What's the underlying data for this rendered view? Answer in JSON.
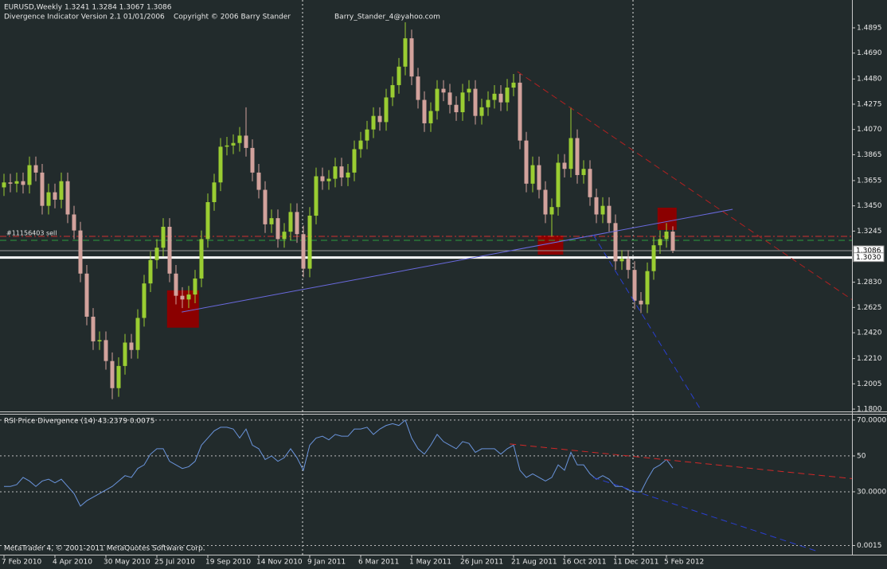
{
  "header": {
    "symbol_line": "EURUSD,Weekly  1.3241 1.3284 1.3067 1.3086",
    "indicator_line": "Divergence Indicator Version 2.1  01/01/2006",
    "copyright": "Copyright © 2006 Barry Stander",
    "email": "Barry_Stander_4@yahoo.com"
  },
  "footer": "MetaTrader 4, © 2001-2011 MetaQuotes Software Corp.",
  "chart_data": [
    {
      "type": "candlestick",
      "up_color": "#9acd32",
      "down_color": "#d2a29c",
      "categories": [
        "7 Feb 2010",
        null,
        null,
        null,
        null,
        null,
        null,
        null,
        "4 Apr 2010",
        null,
        null,
        null,
        null,
        null,
        null,
        null,
        "30 May 2010",
        null,
        null,
        null,
        null,
        null,
        null,
        null,
        "25 Jul 2010",
        null,
        null,
        null,
        null,
        null,
        null,
        null,
        "19 Sep 2010",
        null,
        null,
        null,
        null,
        null,
        null,
        null,
        "14 Nov 2010",
        null,
        null,
        null,
        null,
        null,
        null,
        null,
        "9 Jan 2011",
        null,
        null,
        null,
        null,
        null,
        null,
        null,
        "6 Mar 2011",
        null,
        null,
        null,
        null,
        null,
        null,
        null,
        "1 May 2011",
        null,
        null,
        null,
        null,
        null,
        null,
        null,
        "26 Jun 2011",
        null,
        null,
        null,
        null,
        null,
        null,
        null,
        "21 Aug 2011",
        null,
        null,
        null,
        null,
        null,
        null,
        null,
        "16 Oct 2011",
        null,
        null,
        null,
        null,
        null,
        null,
        null,
        "11 Dec 2011",
        null,
        null,
        null,
        null,
        null,
        null,
        null,
        "5 Feb 2012",
        null
      ],
      "open": [
        1.36,
        1.364,
        1.363,
        1.365,
        1.362,
        1.378,
        1.372,
        1.345,
        1.356,
        1.35,
        1.365,
        1.338,
        1.325,
        1.29,
        1.255,
        1.235,
        1.236,
        1.219,
        1.197,
        1.215,
        1.234,
        1.228,
        1.254,
        1.282,
        1.301,
        1.311,
        1.328,
        1.29,
        1.272,
        1.269,
        1.273,
        1.286,
        1.318,
        1.348,
        1.364,
        1.393,
        1.394,
        1.396,
        1.402,
        1.392,
        1.372,
        1.358,
        1.33,
        1.335,
        1.318,
        1.324,
        1.34,
        1.322,
        1.294,
        1.337,
        1.369,
        1.365,
        1.367,
        1.377,
        1.368,
        1.372,
        1.391,
        1.398,
        1.407,
        1.418,
        1.413,
        1.433,
        1.443,
        1.458,
        1.481,
        1.45,
        1.431,
        1.412,
        1.422,
        1.44,
        1.437,
        1.427,
        1.421,
        1.437,
        1.44,
        1.418,
        1.425,
        1.431,
        1.436,
        1.429,
        1.441,
        1.445,
        1.398,
        1.363,
        1.378,
        1.358,
        1.338,
        1.344,
        1.38,
        1.375,
        1.4,
        1.37,
        1.375,
        1.352,
        1.338,
        1.345,
        1.331,
        1.3,
        1.302,
        1.293,
        1.268,
        1.265,
        1.292,
        1.313,
        1.318,
        1.3241
      ],
      "high": [
        1.371,
        1.371,
        1.372,
        1.372,
        1.385,
        1.385,
        1.379,
        1.363,
        1.363,
        1.372,
        1.372,
        1.345,
        1.332,
        1.297,
        1.262,
        1.243,
        1.243,
        1.226,
        1.222,
        1.241,
        1.241,
        1.261,
        1.289,
        1.308,
        1.318,
        1.335,
        1.335,
        1.297,
        1.279,
        1.28,
        1.293,
        1.325,
        1.355,
        1.371,
        1.4,
        1.401,
        1.403,
        1.409,
        1.425,
        1.399,
        1.379,
        1.365,
        1.342,
        1.342,
        1.331,
        1.347,
        1.347,
        1.329,
        1.344,
        1.376,
        1.376,
        1.374,
        1.384,
        1.384,
        1.379,
        1.398,
        1.405,
        1.414,
        1.425,
        1.425,
        1.44,
        1.45,
        1.465,
        1.494,
        1.488,
        1.457,
        1.438,
        1.429,
        1.447,
        1.447,
        1.444,
        1.434,
        1.444,
        1.447,
        1.447,
        1.432,
        1.438,
        1.443,
        1.443,
        1.448,
        1.452,
        1.452,
        1.405,
        1.385,
        1.385,
        1.365,
        1.351,
        1.387,
        1.387,
        1.425,
        1.407,
        1.382,
        1.382,
        1.359,
        1.352,
        1.352,
        1.338,
        1.309,
        1.309,
        1.3,
        1.275,
        1.299,
        1.32,
        1.325,
        1.331,
        1.3284
      ],
      "low": [
        1.353,
        1.356,
        1.356,
        1.355,
        1.355,
        1.365,
        1.338,
        1.338,
        1.343,
        1.343,
        1.331,
        1.318,
        1.283,
        1.248,
        1.228,
        1.228,
        1.212,
        1.188,
        1.19,
        1.208,
        1.221,
        1.221,
        1.247,
        1.275,
        1.294,
        1.304,
        1.283,
        1.265,
        1.262,
        1.262,
        1.266,
        1.279,
        1.311,
        1.341,
        1.357,
        1.386,
        1.387,
        1.389,
        1.385,
        1.365,
        1.351,
        1.323,
        1.323,
        1.311,
        1.311,
        1.317,
        1.315,
        1.287,
        1.287,
        1.33,
        1.358,
        1.358,
        1.36,
        1.361,
        1.361,
        1.365,
        1.384,
        1.391,
        1.4,
        1.406,
        1.406,
        1.426,
        1.436,
        1.451,
        1.443,
        1.424,
        1.405,
        1.405,
        1.415,
        1.43,
        1.42,
        1.414,
        1.414,
        1.43,
        1.411,
        1.411,
        1.418,
        1.424,
        1.422,
        1.422,
        1.434,
        1.391,
        1.356,
        1.356,
        1.351,
        1.331,
        1.32,
        1.337,
        1.368,
        1.368,
        1.363,
        1.363,
        1.345,
        1.331,
        1.331,
        1.324,
        1.293,
        1.293,
        1.286,
        1.261,
        1.258,
        1.258,
        1.285,
        1.306,
        1.311,
        1.3067
      ],
      "close": [
        1.364,
        1.363,
        1.365,
        1.362,
        1.378,
        1.372,
        1.345,
        1.356,
        1.35,
        1.365,
        1.338,
        1.325,
        1.29,
        1.255,
        1.235,
        1.236,
        1.219,
        1.197,
        1.215,
        1.234,
        1.228,
        1.254,
        1.282,
        1.301,
        1.311,
        1.328,
        1.29,
        1.272,
        1.269,
        1.273,
        1.286,
        1.318,
        1.348,
        1.364,
        1.393,
        1.394,
        1.396,
        1.402,
        1.392,
        1.372,
        1.358,
        1.33,
        1.335,
        1.318,
        1.324,
        1.34,
        1.322,
        1.294,
        1.337,
        1.369,
        1.365,
        1.367,
        1.377,
        1.368,
        1.372,
        1.391,
        1.398,
        1.407,
        1.418,
        1.413,
        1.433,
        1.443,
        1.458,
        1.481,
        1.45,
        1.431,
        1.412,
        1.422,
        1.44,
        1.437,
        1.427,
        1.421,
        1.437,
        1.44,
        1.418,
        1.425,
        1.431,
        1.436,
        1.429,
        1.441,
        1.445,
        1.398,
        1.363,
        1.378,
        1.358,
        1.338,
        1.344,
        1.38,
        1.375,
        1.4,
        1.37,
        1.375,
        1.352,
        1.338,
        1.345,
        1.331,
        1.3,
        1.302,
        1.293,
        1.268,
        1.265,
        1.292,
        1.313,
        1.318,
        1.3241,
        1.3086
      ],
      "ylim": [
        1.1781,
        1.5121
      ],
      "yticks": [
        1.4895,
        {
          "value": 1.469,
          "label": "1.4690"
        },
        {
          "value": 1.448,
          "label": "1.4480"
        },
        1.4275,
        {
          "value": 1.407,
          "label": "1.4070"
        },
        1.3865,
        1.3655,
        {
          "value": 1.345,
          "label": "1.3450"
        },
        1.3245,
        {
          "value": 1.283,
          "label": "1.2830"
        },
        1.2625,
        {
          "value": 1.242,
          "label": "1.2420"
        },
        {
          "value": 1.221,
          "label": "1.2210"
        },
        1.2005,
        {
          "value": 1.18,
          "label": "1.1800"
        }
      ],
      "levels": [
        {
          "value": 1.3202,
          "color": "#d03030",
          "style": "dashdot",
          "label": "#11156403 sell"
        },
        {
          "value": 1.317,
          "color": "#2e9e3e",
          "style": "dash"
        },
        {
          "value": 1.3086,
          "color": "#9a9a9a",
          "style": "solid",
          "axis_box": true
        },
        {
          "value": 1.303,
          "color": "#ffffff",
          "style": "thick",
          "axis_box": true,
          "axis_label": "1.3030"
        }
      ],
      "zones": [
        {
          "x": [
            25.6,
            30.6
          ],
          "y": [
            1.2461,
            1.2764
          ],
          "color": "#8b0000"
        },
        {
          "x": [
            83.8,
            87.8
          ],
          "y": [
            1.3054,
            1.3209
          ],
          "color": "#8b0000"
        },
        {
          "x": [
            102.6,
            105.6
          ],
          "y": [
            1.3254,
            1.3435
          ],
          "color": "#8b0000"
        }
      ],
      "trendlines": [
        {
          "points": [
            [
              27.9,
              1.2588
            ],
            [
              114.4,
              1.3422
            ]
          ],
          "color": "#6a6adf",
          "style": "solid"
        },
        {
          "points": [
            [
              80.6,
              1.454
            ],
            [
              136.9,
              1.2556
            ]
          ],
          "color": "#b02020",
          "style": "dash"
        },
        {
          "points": [
            [
              92.5,
              1.3215
            ],
            [
              109.4,
              1.1794
            ]
          ],
          "color": "#2a3fd0",
          "style": "dash"
        }
      ]
    },
    {
      "type": "line",
      "title": "RSI Price Divergence (14) 43.2379 0.0075",
      "color": "#6a94dc",
      "values": [
        33,
        33,
        34,
        38,
        36,
        33,
        36,
        37,
        35,
        37,
        33,
        29,
        22,
        25,
        27,
        29,
        31,
        33,
        36,
        39,
        38,
        43,
        45,
        51,
        54,
        54,
        47,
        45,
        43,
        44,
        47,
        56,
        60,
        64,
        66,
        66,
        65,
        60,
        65,
        56,
        54,
        48,
        50,
        47,
        49,
        54,
        49,
        42,
        56,
        60,
        61,
        59,
        62,
        61,
        61,
        65,
        65,
        66,
        62,
        65,
        67,
        68,
        67,
        70,
        60,
        54,
        51,
        56,
        62,
        58,
        56,
        54,
        58,
        57,
        52,
        54,
        54,
        54,
        51,
        54,
        56,
        42,
        38,
        40,
        38,
        36,
        38,
        45,
        42,
        52,
        45,
        45,
        40,
        37,
        39,
        37,
        33,
        33,
        31,
        30,
        30,
        37,
        43,
        45,
        48,
        43.2379
      ],
      "ylim": [
        -5.1,
        73.5
      ],
      "yticks": [
        {
          "value": 70,
          "label": "70.0000"
        },
        50,
        {
          "value": 30,
          "label": "30.0000"
        },
        0.0015
      ],
      "trendlines": [
        {
          "points": [
            [
              79.4,
              56.7
            ],
            [
              136.9,
              36
            ]
          ],
          "color": "#d02828",
          "style": "dash"
        },
        {
          "points": [
            [
              92.5,
              38
            ],
            [
              127.5,
              -3
            ]
          ],
          "color": "#2a3fd0",
          "style": "dash"
        }
      ]
    }
  ]
}
